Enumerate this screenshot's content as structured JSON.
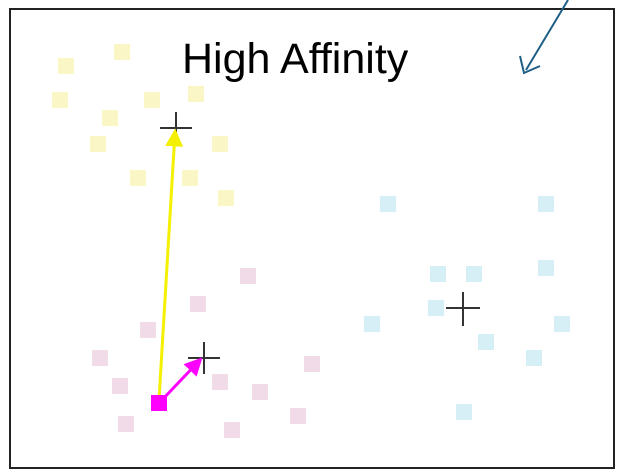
{
  "title": "High Affinity",
  "colors": {
    "border": "#222222",
    "pointer_arrow": "#1f5f87",
    "yellow_cluster": "#fbf6c6",
    "pink_cluster": "#f2dbe9",
    "cyan_cluster": "#d6eef6",
    "yellow_arrow": "#f4f000",
    "magenta_arrow": "#ff00ff",
    "centroid_marker": "#333333"
  },
  "icons": {
    "centroid": "plus-marker",
    "highlighted_point": "magenta-square"
  }
}
